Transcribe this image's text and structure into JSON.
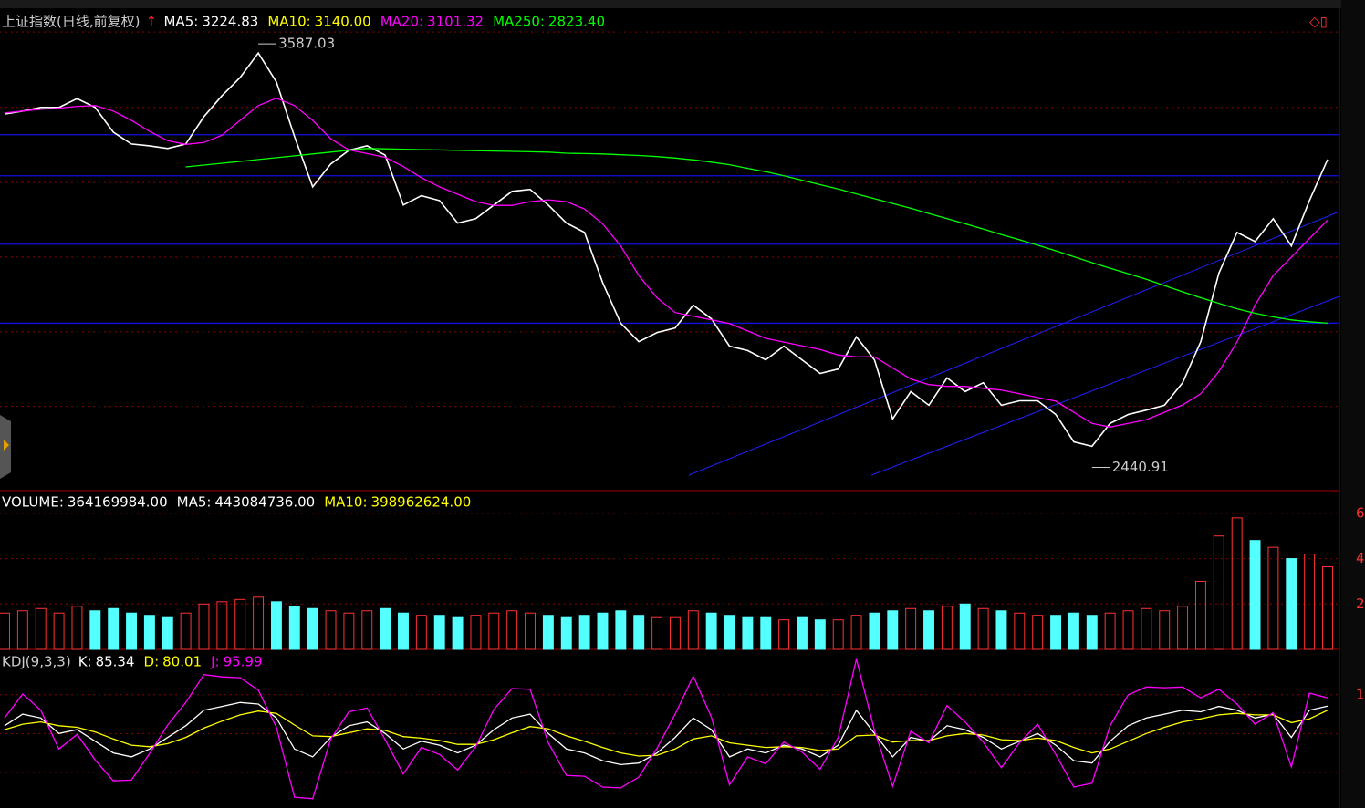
{
  "chart_data": [
    {
      "type": "line",
      "title": "上证指数(日线,前复权)",
      "ylim": [
        2378,
        3681
      ],
      "grid_values": [
        3619,
        3415,
        3212,
        3010,
        2808,
        2606
      ],
      "hlines": [
        3341,
        3230,
        3045,
        2831
      ],
      "legend": {
        "names": [
          "MA5:",
          "MA10:",
          "MA20:",
          "MA250:"
        ],
        "colors": [
          "#ffffff",
          "#ffff00",
          "#ff00ff",
          "#00ff00"
        ],
        "values": [
          3224.83,
          3140,
          3101.32,
          2823.4
        ],
        "value_labels": [
          "3224.83",
          "3140.00",
          "3101.32",
          "2823.40"
        ]
      },
      "annotations": [
        {
          "index": 14,
          "value": 3587.03
        },
        {
          "index": 60,
          "value": 2440.91
        }
      ],
      "series": [
        {
          "name": "Close",
          "color": "#ffffff",
          "values": [
            3397,
            3405,
            3415,
            3415,
            3439,
            3415,
            3348,
            3316,
            3311,
            3304,
            3316,
            3390,
            3447,
            3496,
            3562,
            3484,
            3336,
            3200,
            3262,
            3299,
            3311,
            3286,
            3151,
            3176,
            3163,
            3102,
            3114,
            3151,
            3188,
            3193,
            3151,
            3102,
            3077,
            2941,
            2831,
            2781,
            2806,
            2818,
            2880,
            2843,
            2769,
            2757,
            2732,
            2769,
            2732,
            2695,
            2707,
            2794,
            2732,
            2572,
            2646,
            2609,
            2683,
            2646,
            2670,
            2609,
            2621,
            2621,
            2584,
            2510,
            2498,
            2560,
            2584,
            2596,
            2609,
            2670,
            2781,
            2966,
            3077,
            3052,
            3114,
            3040,
            3163,
            3274
          ]
        },
        {
          "name": "MA20",
          "color": "#ff00ff",
          "values": [
            3400,
            3405,
            3410,
            3413,
            3418,
            3420,
            3405,
            3380,
            3350,
            3325,
            3315,
            3320,
            3340,
            3380,
            3420,
            3440,
            3420,
            3380,
            3330,
            3300,
            3290,
            3280,
            3255,
            3225,
            3200,
            3180,
            3160,
            3150,
            3150,
            3160,
            3165,
            3160,
            3140,
            3100,
            3040,
            2960,
            2900,
            2860,
            2850,
            2840,
            2830,
            2810,
            2790,
            2780,
            2770,
            2760,
            2745,
            2740,
            2740,
            2710,
            2680,
            2665,
            2660,
            2660,
            2655,
            2650,
            2640,
            2630,
            2620,
            2590,
            2560,
            2550,
            2560,
            2570,
            2590,
            2610,
            2640,
            2700,
            2780,
            2880,
            2960,
            3010,
            3060,
            3110
          ]
        },
        {
          "name": "MA250",
          "color": "#00ff00",
          "values": [
            null,
            null,
            null,
            null,
            null,
            null,
            null,
            null,
            null,
            null,
            3254,
            3259,
            3264,
            3269,
            3274,
            3279,
            3284,
            3289,
            3294,
            3299,
            3304,
            3303,
            3302,
            3301,
            3300,
            3299,
            3298,
            3297,
            3296,
            3295,
            3294,
            3291,
            3290,
            3289,
            3287,
            3285,
            3282,
            3278,
            3273,
            3267,
            3260,
            3250,
            3241,
            3230,
            3218,
            3206,
            3194,
            3181,
            3168,
            3155,
            3142,
            3128,
            3114,
            3100,
            3086,
            3071,
            3057,
            3042,
            3027,
            3011,
            2995,
            2980,
            2965,
            2950,
            2933,
            2916,
            2900,
            2885,
            2870,
            2858,
            2848,
            2840,
            2835,
            2831
          ]
        }
      ]
    },
    {
      "type": "bar",
      "ylim": [
        0,
        692000000
      ],
      "yticks": [
        {
          "value": 600000000,
          "label": "6"
        },
        {
          "value": 400000000,
          "label": "4"
        },
        {
          "value": 200000000,
          "label": "2"
        }
      ],
      "legend": {
        "names": [
          "VOLUME:",
          "MA5:",
          "MA10:"
        ],
        "colors": [
          "#ffffff",
          "#ffffff",
          "#ffff00"
        ],
        "values": [
          364169984,
          443084736,
          398962624
        ],
        "value_labels": [
          "364169984.00",
          "443084736.00",
          "398962624.00"
        ]
      },
      "up_color": "#ff3232",
      "down_color": "#54ffff",
      "values": [
        160000000.0,
        170000000.0,
        180000000.0,
        160000000.0,
        190000000.0,
        170000000.0,
        180000000.0,
        160000000.0,
        150000000.0,
        140000000.0,
        160000000.0,
        200000000.0,
        210000000.0,
        220000000.0,
        230000000.0,
        210000000.0,
        190000000.0,
        180000000.0,
        170000000.0,
        160000000.0,
        170000000.0,
        180000000.0,
        160000000.0,
        150000000.0,
        150000000.0,
        140000000.0,
        150000000.0,
        160000000.0,
        170000000.0,
        160000000.0,
        150000000.0,
        140000000.0,
        150000000.0,
        160000000.0,
        170000000.0,
        150000000.0,
        140000000.0,
        140000000.0,
        170000000.0,
        160000000.0,
        150000000.0,
        140000000.0,
        140000000.0,
        130000000.0,
        140000000.0,
        130000000.0,
        130000000.0,
        150000000.0,
        160000000.0,
        170000000.0,
        180000000.0,
        170000000.0,
        190000000.0,
        200000000.0,
        180000000.0,
        170000000.0,
        160000000.0,
        150000000.0,
        150000000.0,
        160000000.0,
        150000000.0,
        160000000.0,
        170000000.0,
        180000000.0,
        170000000.0,
        190000000.0,
        300000000.0,
        500000000.0,
        580000000.0,
        480000000.0,
        450000000.0,
        400000000.0,
        420000000.0,
        364000000.0
      ]
    },
    {
      "type": "line",
      "title": "KDJ(9,3,3)",
      "ylim": [
        -46,
        155
      ],
      "yticks": [
        {
          "value": 100,
          "label": "1"
        }
      ],
      "grid_values": [
        100,
        50,
        0
      ],
      "legend": {
        "names": [
          "K:",
          "D:",
          "J:"
        ],
        "colors": [
          "#ffffff",
          "#ffff00",
          "#ff00ff"
        ],
        "values": [
          85.34,
          80.01,
          95.99
        ]
      },
      "series": [
        {
          "name": "K",
          "color": "#ffffff",
          "values": [
            60,
            75,
            70,
            50,
            55,
            40,
            25,
            20,
            30,
            45,
            60,
            80,
            85,
            90,
            88,
            70,
            30,
            20,
            45,
            60,
            65,
            50,
            30,
            40,
            35,
            25,
            35,
            55,
            70,
            75,
            50,
            30,
            25,
            15,
            10,
            12,
            25,
            45,
            70,
            55,
            20,
            30,
            25,
            35,
            30,
            20,
            35,
            80,
            50,
            20,
            45,
            40,
            60,
            55,
            45,
            30,
            40,
            50,
            35,
            15,
            12,
            40,
            60,
            70,
            75,
            80,
            78,
            85,
            80,
            70,
            75,
            45,
            80,
            85.34
          ]
        },
        {
          "name": "D",
          "color": "#ffff00",
          "values": [
            55,
            62,
            65,
            60,
            58,
            52,
            43,
            35,
            33,
            37,
            45,
            57,
            66,
            74,
            79,
            76,
            61,
            47,
            46,
            51,
            56,
            54,
            46,
            44,
            41,
            36,
            36,
            42,
            51,
            59,
            56,
            47,
            40,
            32,
            25,
            21,
            22,
            30,
            43,
            47,
            38,
            35,
            32,
            33,
            32,
            28,
            30,
            47,
            48,
            39,
            41,
            41,
            47,
            50,
            48,
            42,
            41,
            44,
            41,
            32,
            25,
            30,
            40,
            50,
            58,
            65,
            69,
            74,
            76,
            74,
            74,
            64,
            69,
            80.01
          ]
        },
        {
          "name": "J",
          "color": "#ff00ff",
          "values": [
            70,
            101,
            80,
            30,
            49,
            16,
            -11,
            -10,
            24,
            61,
            90,
            126,
            123,
            122,
            106,
            58,
            -32,
            -34,
            43,
            78,
            83,
            42,
            -2,
            32,
            23,
            3,
            33,
            81,
            108,
            107,
            38,
            -4,
            -5,
            -19,
            -20,
            -6,
            31,
            75,
            124,
            71,
            -16,
            20,
            11,
            39,
            26,
            4,
            45,
            146,
            54,
            -18,
            53,
            38,
            86,
            65,
            39,
            6,
            38,
            62,
            23,
            -19,
            -14,
            60,
            100,
            110,
            109,
            110,
            96,
            107,
            88,
            62,
            77,
            7,
            102,
            95.99
          ]
        }
      ]
    }
  ]
}
